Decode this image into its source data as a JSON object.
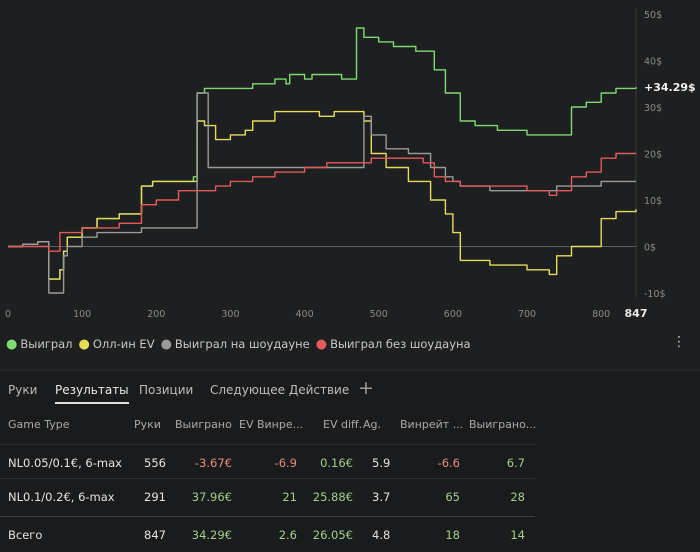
{
  "chart_data": {
    "type": "line",
    "x_ticks": [
      0,
      100,
      200,
      300,
      400,
      500,
      600,
      700,
      800
    ],
    "x_max_label": "847",
    "y_ticks": [
      "50$",
      "40$",
      "30$",
      "20$",
      "10$",
      "0$",
      "-10$"
    ],
    "y_values": [
      50,
      40,
      30,
      20,
      10,
      0,
      -10
    ],
    "ylim": [
      -10,
      50
    ],
    "xlim": [
      0,
      847
    ],
    "end_label": "+34.29$",
    "series": [
      {
        "name": "Выиграл",
        "color": "#7ddc6f",
        "points": [
          [
            0,
            0
          ],
          [
            20,
            0.5
          ],
          [
            40,
            1
          ],
          [
            55,
            -7
          ],
          [
            70,
            -5
          ],
          [
            75,
            -1
          ],
          [
            80,
            2
          ],
          [
            100,
            4
          ],
          [
            120,
            6
          ],
          [
            150,
            7
          ],
          [
            180,
            13
          ],
          [
            195,
            14
          ],
          [
            200,
            14
          ],
          [
            250,
            15
          ],
          [
            255,
            33
          ],
          [
            265,
            34
          ],
          [
            270,
            34
          ],
          [
            300,
            34
          ],
          [
            330,
            35
          ],
          [
            360,
            36
          ],
          [
            375,
            35
          ],
          [
            380,
            37
          ],
          [
            400,
            36
          ],
          [
            410,
            37
          ],
          [
            450,
            36
          ],
          [
            470,
            47
          ],
          [
            480,
            45
          ],
          [
            500,
            44
          ],
          [
            520,
            43
          ],
          [
            550,
            42
          ],
          [
            575,
            38
          ],
          [
            590,
            33
          ],
          [
            610,
            27
          ],
          [
            630,
            26
          ],
          [
            660,
            25
          ],
          [
            700,
            24
          ],
          [
            720,
            24
          ],
          [
            740,
            24
          ],
          [
            760,
            30
          ],
          [
            780,
            31
          ],
          [
            800,
            33
          ],
          [
            820,
            34
          ],
          [
            847,
            34.29
          ]
        ]
      },
      {
        "name": "Олл-ин EV",
        "color": "#e6dc5a",
        "points": [
          [
            0,
            0
          ],
          [
            20,
            0.5
          ],
          [
            40,
            1
          ],
          [
            55,
            -7
          ],
          [
            70,
            -5
          ],
          [
            75,
            -1
          ],
          [
            80,
            2
          ],
          [
            100,
            4
          ],
          [
            120,
            6
          ],
          [
            150,
            7
          ],
          [
            180,
            13
          ],
          [
            195,
            14
          ],
          [
            200,
            14
          ],
          [
            250,
            14
          ],
          [
            255,
            27
          ],
          [
            265,
            26
          ],
          [
            280,
            23
          ],
          [
            300,
            24
          ],
          [
            320,
            25
          ],
          [
            330,
            27
          ],
          [
            340,
            27
          ],
          [
            360,
            29
          ],
          [
            380,
            29
          ],
          [
            400,
            29
          ],
          [
            420,
            28
          ],
          [
            440,
            29
          ],
          [
            470,
            29
          ],
          [
            480,
            27
          ],
          [
            490,
            20
          ],
          [
            510,
            17
          ],
          [
            540,
            14
          ],
          [
            570,
            10
          ],
          [
            590,
            7
          ],
          [
            600,
            3
          ],
          [
            610,
            -3
          ],
          [
            620,
            -3
          ],
          [
            650,
            -4
          ],
          [
            700,
            -5
          ],
          [
            730,
            -6
          ],
          [
            740,
            -2
          ],
          [
            760,
            0
          ],
          [
            780,
            0
          ],
          [
            800,
            6
          ],
          [
            820,
            7.5
          ],
          [
            847,
            8
          ]
        ]
      },
      {
        "name": "Выиграл на шоудауне",
        "color": "#9a9a9a",
        "points": [
          [
            0,
            0
          ],
          [
            20,
            0.5
          ],
          [
            40,
            1
          ],
          [
            55,
            -10
          ],
          [
            70,
            -10
          ],
          [
            75,
            -2
          ],
          [
            80,
            0
          ],
          [
            100,
            2
          ],
          [
            120,
            3
          ],
          [
            150,
            3
          ],
          [
            180,
            4
          ],
          [
            195,
            4
          ],
          [
            200,
            4
          ],
          [
            250,
            4
          ],
          [
            255,
            33
          ],
          [
            265,
            33
          ],
          [
            270,
            17
          ],
          [
            300,
            17
          ],
          [
            350,
            17
          ],
          [
            470,
            17
          ],
          [
            480,
            28
          ],
          [
            490,
            24
          ],
          [
            510,
            21
          ],
          [
            540,
            20
          ],
          [
            570,
            17
          ],
          [
            590,
            15
          ],
          [
            600,
            14
          ],
          [
            610,
            13
          ],
          [
            650,
            12
          ],
          [
            700,
            12
          ],
          [
            730,
            12
          ],
          [
            740,
            13
          ],
          [
            760,
            13
          ],
          [
            780,
            13
          ],
          [
            800,
            14
          ],
          [
            847,
            14
          ]
        ]
      },
      {
        "name": "Выиграл без шоудауна",
        "color": "#e35a5a",
        "points": [
          [
            0,
            0
          ],
          [
            20,
            0
          ],
          [
            40,
            0
          ],
          [
            55,
            -1
          ],
          [
            70,
            3
          ],
          [
            100,
            4
          ],
          [
            130,
            4
          ],
          [
            150,
            5
          ],
          [
            180,
            9
          ],
          [
            200,
            10
          ],
          [
            230,
            12
          ],
          [
            260,
            12
          ],
          [
            280,
            13
          ],
          [
            300,
            14
          ],
          [
            330,
            15
          ],
          [
            360,
            16
          ],
          [
            400,
            17
          ],
          [
            430,
            18
          ],
          [
            470,
            18
          ],
          [
            490,
            19
          ],
          [
            510,
            19
          ],
          [
            540,
            19
          ],
          [
            560,
            18
          ],
          [
            575,
            15
          ],
          [
            590,
            14
          ],
          [
            610,
            13
          ],
          [
            650,
            13
          ],
          [
            700,
            12
          ],
          [
            730,
            11
          ],
          [
            740,
            12
          ],
          [
            760,
            15
          ],
          [
            780,
            16
          ],
          [
            800,
            19
          ],
          [
            820,
            20
          ],
          [
            847,
            20
          ]
        ]
      }
    ]
  },
  "legend": [
    {
      "label": "Выиграл",
      "color": "#7ddc6f"
    },
    {
      "label": "Олл-ин EV",
      "color": "#e6dc5a"
    },
    {
      "label": "Выиграл на шоудауне",
      "color": "#9a9a9a"
    },
    {
      "label": "Выиграл без шоудауна",
      "color": "#e35a5a"
    }
  ],
  "more_icon": "⋮",
  "tabs": [
    "Руки",
    "Результаты",
    "Позиции",
    "Следующее Действие"
  ],
  "add_tab_icon": "+",
  "table": {
    "headers": [
      "Game Type",
      "Руки",
      "Выиграно",
      "EV Винре...",
      "EV diff.",
      "Ag.",
      "Винрейт ...",
      "Выиграно..."
    ],
    "rows": [
      [
        "NL0.05/0.1€, 6-max",
        "556",
        "-3.67€",
        "-6.9",
        "0.16€",
        "5.9",
        "-6.6",
        "6.7"
      ],
      [
        "NL0.1/0.2€, 6-max",
        "291",
        "37.96€",
        "21",
        "25.88€",
        "3.7",
        "65",
        "28"
      ],
      [
        "Всего",
        "847",
        "34.29€",
        "2.6",
        "26.05€",
        "4.8",
        "18",
        "14"
      ]
    ]
  }
}
